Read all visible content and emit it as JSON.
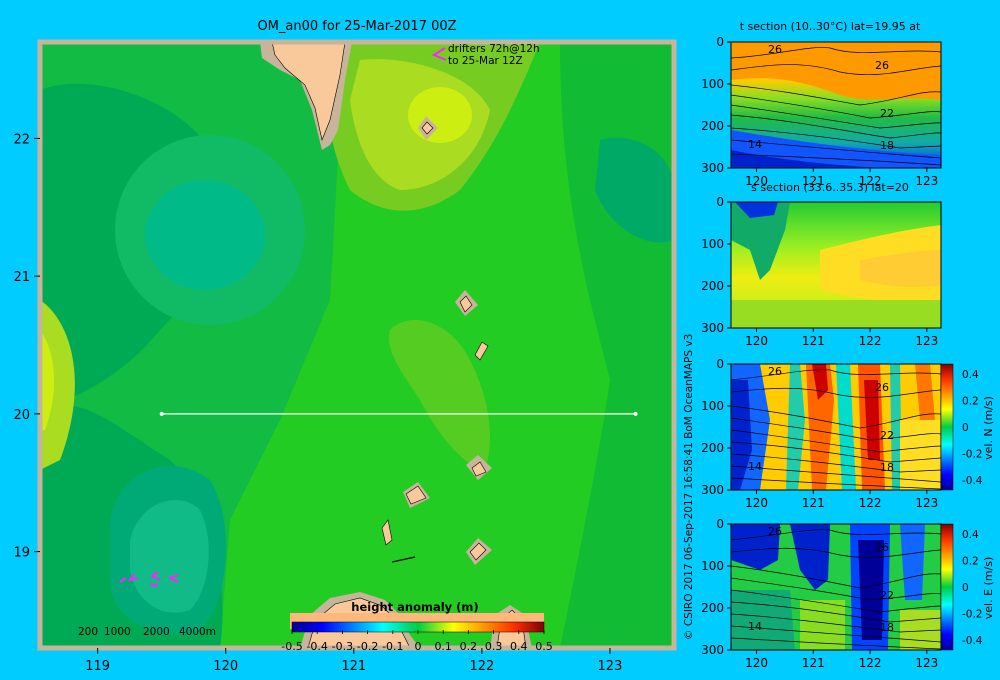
{
  "colors": {
    "background": "#00ccff",
    "land": "#f9c99b",
    "shelf": "#c8b49a",
    "drifter": "#ff22ff",
    "transect": "#ffffff"
  },
  "chart_data": [
    {
      "type": "heatmap",
      "title": "OM_an00 for 25-Mar-2017 00Z",
      "annotation_lines": [
        "drifters 72h@12h",
        "to 25-Mar 12Z"
      ],
      "x_ticks": [
        119,
        120,
        121,
        122,
        123
      ],
      "y_ticks": [
        19,
        20,
        21,
        22
      ],
      "xlim": [
        118.55,
        123.5
      ],
      "ylim": [
        18.3,
        22.7
      ],
      "transect": {
        "lat": 20,
        "lon_start": 119.5,
        "lon_end": 123.2
      },
      "depth_legend": [
        "200",
        "1000",
        "2000",
        "4000m"
      ],
      "colorbar": {
        "label": "height anomaly  (m)",
        "ticks": [
          "-0.5",
          "-0.4",
          "-0.3",
          "-0.2",
          "-0.1",
          "0",
          "0.1",
          "0.2",
          "0.3",
          "0.4",
          "0.5"
        ],
        "range": [
          -0.5,
          0.5
        ]
      }
    },
    {
      "type": "heatmap",
      "title": "t section (10..30°C) lat=19.95 at",
      "x_ticks": [
        120,
        121,
        122,
        123
      ],
      "y_ticks": [
        0,
        100,
        200,
        300
      ],
      "contour_labels": [
        "26",
        "26",
        "22",
        "18",
        "14"
      ]
    },
    {
      "type": "heatmap",
      "title": "s section (33.6..35.3) lat=20",
      "x_ticks": [
        120,
        121,
        122,
        123
      ],
      "y_ticks": [
        0,
        100,
        200,
        300
      ]
    },
    {
      "type": "heatmap",
      "title": "",
      "x_ticks": [
        120,
        121,
        122,
        123
      ],
      "y_ticks": [
        0,
        100,
        200,
        300
      ],
      "contour_labels": [
        "26",
        "26",
        "22",
        "18",
        "14"
      ],
      "colorbar": {
        "label": "vel. N  (m/s)",
        "ticks": [
          "0.4",
          "0.2",
          "0",
          "-0.2",
          "-0.4"
        ],
        "range": [
          -0.4,
          0.4
        ]
      }
    },
    {
      "type": "heatmap",
      "title": "",
      "x_ticks": [
        120,
        121,
        122,
        123
      ],
      "y_ticks": [
        0,
        100,
        200,
        300
      ],
      "contour_labels": [
        "26",
        "26",
        "22",
        "18",
        "14"
      ],
      "colorbar": {
        "label": "vel. E  (m/s)",
        "ticks": [
          "0.4",
          "0.2",
          "0",
          "-0.2",
          "-0.4"
        ],
        "range": [
          -0.4,
          0.4
        ]
      }
    }
  ],
  "credit": "© CSIRO 2017   06-Sep-2017 16:58:41 BoM OceanMAPS v3"
}
